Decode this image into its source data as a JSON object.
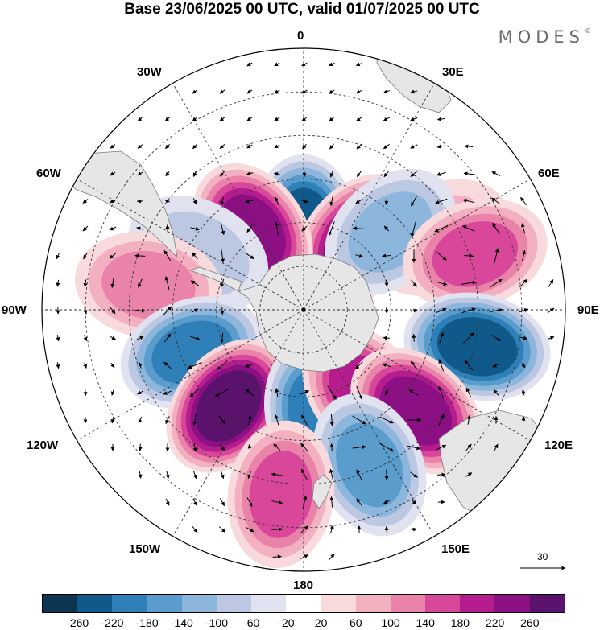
{
  "title": "Base 23/06/2025 00 UTC, valid 01/07/2025 00 UTC",
  "brand": "MODES",
  "brand_mark": "©",
  "longitude_labels": {
    "lon_0": "0",
    "lon_30e": "30E",
    "lon_60e": "60E",
    "lon_90e": "90E",
    "lon_120e": "120E",
    "lon_150e": "150E",
    "lon_180": "180",
    "lon_150w": "150W",
    "lon_120w": "120W",
    "lon_90w": "90W",
    "lon_60w": "60W",
    "lon_30w": "30W"
  },
  "reference_vector_label": "30",
  "colorbar": {
    "colors": [
      "#0b3551",
      "#0f5a8a",
      "#2f7fb8",
      "#5a9dcc",
      "#8db6dc",
      "#bcc7e2",
      "#e0e2ef",
      "#ffffff",
      "#f8dadd",
      "#f2b0c0",
      "#e983aa",
      "#d9479a",
      "#b51d8e",
      "#8c0f84",
      "#5a126d"
    ],
    "tick_labels": [
      "-260",
      "-220",
      "-180",
      "-140",
      "-100",
      "-60",
      "-20",
      "20",
      "60",
      "100",
      "140",
      "180",
      "220",
      "260"
    ]
  },
  "anomaly_centers": [
    {
      "lon": 0,
      "colat": 28,
      "value": -240
    },
    {
      "lon": 38,
      "colat": 30,
      "value": 240
    },
    {
      "lon": -33,
      "colat": 32,
      "value": 220
    },
    {
      "lon": -62,
      "colat": 41,
      "value": -80
    },
    {
      "lon": 62,
      "colat": 53,
      "value": 60
    },
    {
      "lon": 48,
      "colat": 40,
      "value": -120
    },
    {
      "lon": 72,
      "colat": 62,
      "value": 150
    },
    {
      "lon": 102,
      "colat": 61,
      "value": -230
    },
    {
      "lon": -81,
      "colat": 54,
      "value": 130
    },
    {
      "lon": -111,
      "colat": 41,
      "value": -200
    },
    {
      "lon": -142,
      "colat": 42,
      "value": 260
    },
    {
      "lon": 172,
      "colat": 35,
      "value": -200
    },
    {
      "lon": 144,
      "colat": 35,
      "value": 200
    },
    {
      "lon": 132,
      "colat": 52,
      "value": 240
    },
    {
      "lon": 157,
      "colat": 58,
      "value": -160
    },
    {
      "lon": -173,
      "colat": 64,
      "value": 150
    }
  ]
}
